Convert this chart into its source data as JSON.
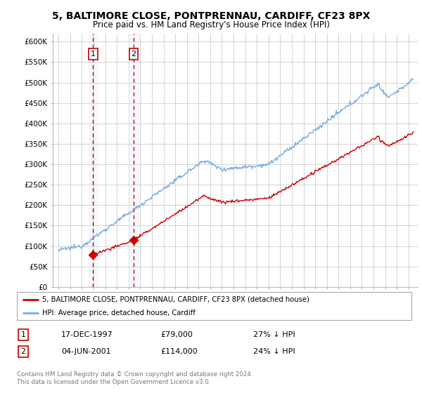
{
  "title_line1": "5, BALTIMORE CLOSE, PONTPRENNAU, CARDIFF, CF23 8PX",
  "title_line2": "Price paid vs. HM Land Registry's House Price Index (HPI)",
  "ylim": [
    0,
    620000
  ],
  "yticks": [
    0,
    50000,
    100000,
    150000,
    200000,
    250000,
    300000,
    350000,
    400000,
    450000,
    500000,
    550000,
    600000
  ],
  "ytick_labels": [
    "£0",
    "£50K",
    "£100K",
    "£150K",
    "£200K",
    "£250K",
    "£300K",
    "£350K",
    "£400K",
    "£450K",
    "£500K",
    "£550K",
    "£600K"
  ],
  "hpi_color": "#7aabe0",
  "price_color": "#cc0000",
  "marker_color": "#cc0000",
  "vline_color": "#cc0000",
  "highlight_color": "#ddeeff",
  "transaction1_date_num": 1997.96,
  "transaction1_price": 79000,
  "transaction2_date_num": 2001.43,
  "transaction2_price": 114000,
  "legend_property": "5, BALTIMORE CLOSE, PONTPRENNAU, CARDIFF, CF23 8PX (detached house)",
  "legend_hpi": "HPI: Average price, detached house, Cardiff",
  "table_row1": [
    "1",
    "17-DEC-1997",
    "£79,000",
    "27% ↓ HPI"
  ],
  "table_row2": [
    "2",
    "04-JUN-2001",
    "£114,000",
    "24% ↓ HPI"
  ],
  "footnote": "Contains HM Land Registry data © Crown copyright and database right 2024.\nThis data is licensed under the Open Government Licence v3.0.",
  "background_color": "#ffffff",
  "grid_color": "#cccccc"
}
